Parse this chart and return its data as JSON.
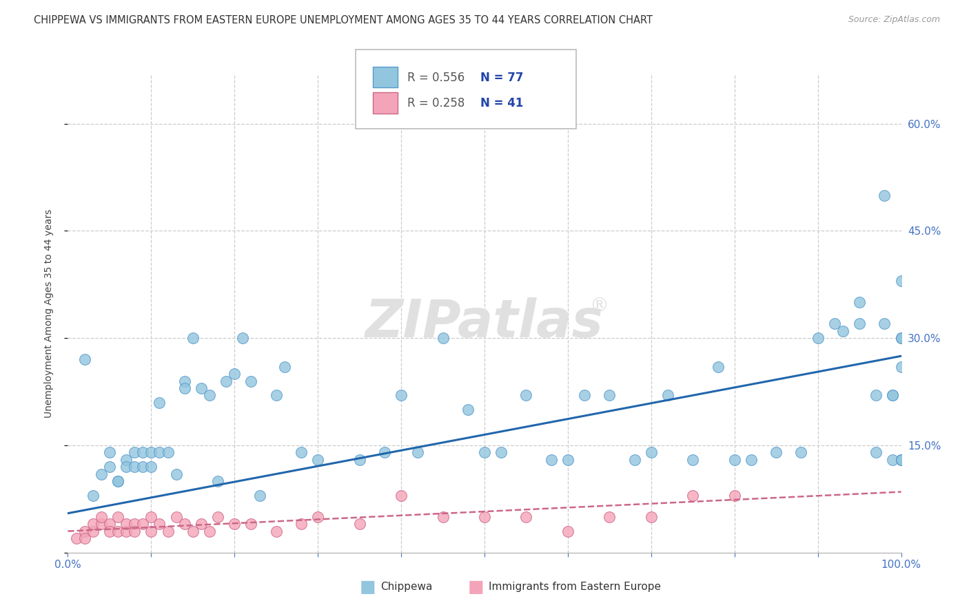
{
  "title": "CHIPPEWA VS IMMIGRANTS FROM EASTERN EUROPE UNEMPLOYMENT AMONG AGES 35 TO 44 YEARS CORRELATION CHART",
  "source": "Source: ZipAtlas.com",
  "ylabel": "Unemployment Among Ages 35 to 44 years",
  "xlim": [
    0,
    100
  ],
  "ylim": [
    0,
    67
  ],
  "color_blue": "#92c5de",
  "color_pink": "#f4a4b8",
  "line_color_blue": "#2166ac",
  "line_color_pink": "#cc6688",
  "watermark": "ZIPatlas",
  "blue_x": [
    2,
    3,
    4,
    5,
    5,
    6,
    6,
    7,
    7,
    8,
    8,
    9,
    9,
    10,
    10,
    11,
    11,
    12,
    13,
    14,
    14,
    15,
    16,
    17,
    18,
    19,
    20,
    21,
    22,
    23,
    25,
    26,
    28,
    30,
    35,
    38,
    40,
    42,
    45,
    48,
    50,
    52,
    55,
    58,
    60,
    62,
    65,
    68,
    70,
    72,
    75,
    78,
    80,
    82,
    85,
    88,
    90,
    92,
    93,
    95,
    95,
    97,
    97,
    98,
    98,
    99,
    99,
    99,
    100,
    100,
    100,
    100,
    100,
    100,
    100,
    100,
    100
  ],
  "blue_y": [
    27,
    8,
    11,
    12,
    14,
    10,
    10,
    13,
    12,
    12,
    14,
    12,
    14,
    12,
    14,
    21,
    14,
    14,
    11,
    24,
    23,
    30,
    23,
    22,
    10,
    24,
    25,
    30,
    24,
    8,
    22,
    26,
    14,
    13,
    13,
    14,
    22,
    14,
    30,
    20,
    14,
    14,
    22,
    13,
    13,
    22,
    22,
    13,
    14,
    22,
    13,
    26,
    13,
    13,
    14,
    14,
    30,
    32,
    31,
    35,
    32,
    14,
    22,
    50,
    32,
    13,
    22,
    22,
    26,
    30,
    38,
    30,
    13,
    13,
    13,
    30,
    13
  ],
  "pink_x": [
    1,
    2,
    2,
    3,
    3,
    4,
    4,
    5,
    5,
    6,
    6,
    7,
    7,
    8,
    8,
    9,
    10,
    10,
    11,
    12,
    13,
    14,
    15,
    16,
    17,
    18,
    20,
    22,
    25,
    28,
    30,
    35,
    40,
    45,
    50,
    55,
    60,
    65,
    70,
    75,
    80
  ],
  "pink_y": [
    2,
    3,
    2,
    3,
    4,
    4,
    5,
    4,
    3,
    3,
    5,
    3,
    4,
    4,
    3,
    4,
    3,
    5,
    4,
    3,
    5,
    4,
    3,
    4,
    3,
    5,
    4,
    4,
    3,
    4,
    5,
    4,
    8,
    5,
    5,
    5,
    3,
    5,
    5,
    8,
    8
  ],
  "bg_color": "#ffffff",
  "legend_r1": "R = 0.556",
  "legend_n1": "N = 77",
  "legend_r2": "R = 0.258",
  "legend_n2": "N = 41",
  "title_fontsize": 10.5,
  "tick_fontsize": 11,
  "ylabel_fontsize": 10
}
